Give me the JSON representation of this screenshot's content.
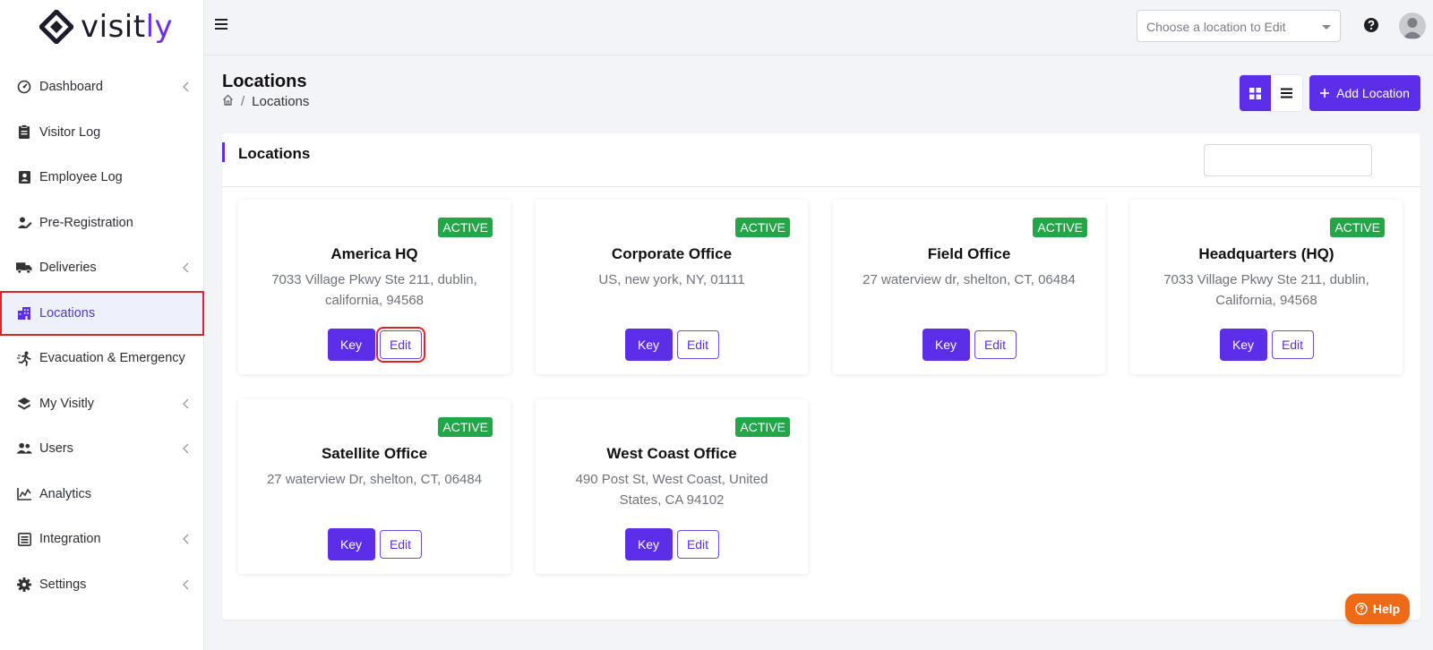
{
  "brand": {
    "logo_text_main": "visit",
    "logo_text_accent": "ly"
  },
  "sidebar": {
    "items": [
      {
        "label": "Dashboard",
        "icon": "dashboard-gauge-icon",
        "has_chevron": true
      },
      {
        "label": "Visitor Log",
        "icon": "clipboard-icon",
        "has_chevron": false
      },
      {
        "label": "Employee Log",
        "icon": "id-badge-icon",
        "has_chevron": false
      },
      {
        "label": "Pre-Registration",
        "icon": "user-edit-icon",
        "has_chevron": false
      },
      {
        "label": "Deliveries",
        "icon": "truck-icon",
        "has_chevron": true
      },
      {
        "label": "Locations",
        "icon": "building-icon",
        "has_chevron": false,
        "active": true
      },
      {
        "label": "Evacuation & Emergency",
        "icon": "running-person-icon",
        "has_chevron": false
      },
      {
        "label": "My Visitly",
        "icon": "layers-icon",
        "has_chevron": true
      },
      {
        "label": "Users",
        "icon": "users-icon",
        "has_chevron": true
      },
      {
        "label": "Analytics",
        "icon": "chart-line-icon",
        "has_chevron": false
      },
      {
        "label": "Integration",
        "icon": "integration-icon",
        "has_chevron": true
      },
      {
        "label": "Settings",
        "icon": "gear-icon",
        "has_chevron": true
      }
    ]
  },
  "topbar": {
    "location_select_placeholder": "Choose a location to Edit"
  },
  "header": {
    "title": "Locations",
    "breadcrumb_current": "Locations",
    "breadcrumb_separator": "/",
    "add_button_label": "Add Location"
  },
  "panel": {
    "title": "Locations",
    "search_value": ""
  },
  "cards": [
    {
      "status": "ACTIVE",
      "name": "America HQ",
      "address": "7033 Village Pkwy Ste 211, dublin, california, 94568",
      "key_label": "Key",
      "edit_label": "Edit"
    },
    {
      "status": "ACTIVE",
      "name": "Corporate Office",
      "address": "US, new york, NY, 01111",
      "key_label": "Key",
      "edit_label": "Edit"
    },
    {
      "status": "ACTIVE",
      "name": "Field Office",
      "address": "27 waterview dr, shelton, CT, 06484",
      "key_label": "Key",
      "edit_label": "Edit"
    },
    {
      "status": "ACTIVE",
      "name": "Headquarters (HQ)",
      "address": "7033 Village Pkwy Ste 211, dublin, California, 94568",
      "key_label": "Key",
      "edit_label": "Edit"
    },
    {
      "status": "ACTIVE",
      "name": "Satellite Office",
      "address": "27 waterview Dr, shelton, CT, 06484",
      "key_label": "Key",
      "edit_label": "Edit"
    },
    {
      "status": "ACTIVE",
      "name": "West Coast Office",
      "address": "490 Post St, West Coast, United States, CA 94102",
      "key_label": "Key",
      "edit_label": "Edit"
    }
  ],
  "help_fab": {
    "label": "Help"
  },
  "colors": {
    "primary": "#5c2ee8",
    "active_badge": "#22a648",
    "help": "#ee6a17",
    "highlight": "#d9232e"
  }
}
